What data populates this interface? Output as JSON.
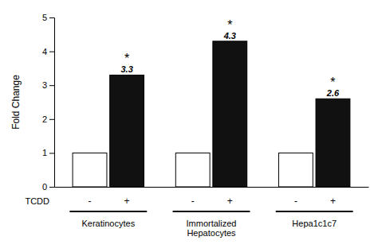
{
  "chart_data": {
    "type": "bar",
    "categories": [
      "Keratinocytes",
      "Immortalized\nHepatocytes",
      "Hepa1c1c7"
    ],
    "xlabel": "TCDD",
    "ylabel": "Fold Change",
    "series": [
      {
        "name": "-",
        "color": "#ffffff",
        "values": [
          1.0,
          1.0,
          1.0
        ]
      },
      {
        "name": "+",
        "color": "#111111",
        "values": [
          3.3,
          4.3,
          2.6
        ],
        "data_labels": true,
        "annotations": [
          "*",
          "*",
          "*"
        ]
      }
    ],
    "ylim": [
      0,
      5
    ],
    "yticks": [
      0,
      1,
      2,
      3,
      4,
      5
    ],
    "grid": false
  }
}
